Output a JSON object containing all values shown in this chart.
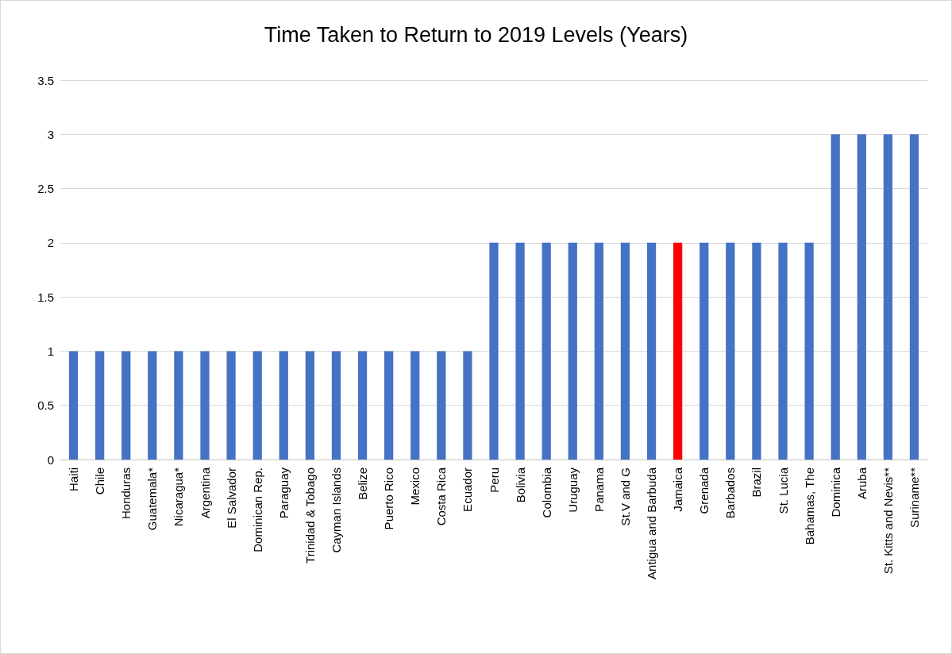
{
  "chart_data": {
    "type": "bar",
    "title": "Time Taken to Return to 2019 Levels (Years)",
    "categories": [
      "Haiti",
      "Chile",
      "Honduras",
      "Guatemala*",
      "Nicaragua*",
      "Argentina",
      "El Salvador",
      "Dominican Rep.",
      "Paraguay",
      "Trinidad & Tobago",
      "Cayman Islands",
      "Belize",
      "Puerto Rico",
      "Mexico",
      "Costa Rica",
      "Ecuador",
      "Peru",
      "Bolivia",
      "Colombia",
      "Uruguay",
      "Panama",
      "St.V and G",
      "Antigua and Barbuda",
      "Jamaica",
      "Grenada",
      "Barbados",
      "Brazil",
      "St. Lucia",
      "Bahamas, The",
      "Dominica",
      "Aruba",
      "St. Kitts and Nevis**",
      "Suriname**"
    ],
    "values": [
      1,
      1,
      1,
      1,
      1,
      1,
      1,
      1,
      1,
      1,
      1,
      1,
      1,
      1,
      1,
      1,
      2,
      2,
      2,
      2,
      2,
      2,
      2,
      2,
      2,
      2,
      2,
      2,
      2,
      3,
      3,
      3,
      3
    ],
    "colors": [
      "#4472c4",
      "#4472c4",
      "#4472c4",
      "#4472c4",
      "#4472c4",
      "#4472c4",
      "#4472c4",
      "#4472c4",
      "#4472c4",
      "#4472c4",
      "#4472c4",
      "#4472c4",
      "#4472c4",
      "#4472c4",
      "#4472c4",
      "#4472c4",
      "#4472c4",
      "#4472c4",
      "#4472c4",
      "#4472c4",
      "#4472c4",
      "#4472c4",
      "#4472c4",
      "#ff0000",
      "#4472c4",
      "#4472c4",
      "#4472c4",
      "#4472c4",
      "#4472c4",
      "#4472c4",
      "#4472c4",
      "#4472c4",
      "#4472c4"
    ],
    "ylim": [
      0,
      3.5
    ],
    "yticks": [
      0,
      0.5,
      1,
      1.5,
      2,
      2.5,
      3,
      3.5
    ],
    "grid": "y"
  }
}
